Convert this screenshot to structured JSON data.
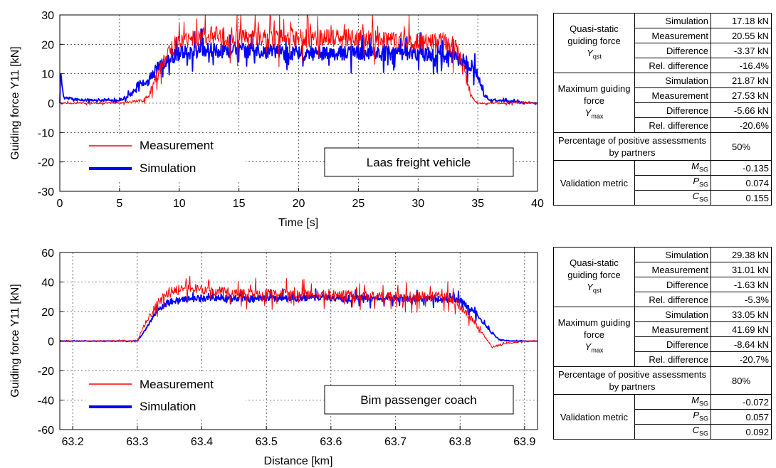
{
  "chart_data": [
    {
      "type": "line",
      "title": "",
      "xlabel": "Time [s]",
      "ylabel": "Guiding force Y11  [kN]",
      "xlim": [
        0,
        40
      ],
      "ylim": [
        -30,
        30
      ],
      "xticks": [
        "0",
        "5",
        "10",
        "15",
        "20",
        "25",
        "30",
        "35",
        "40"
      ],
      "yticks": [
        "30",
        "20",
        "10",
        "0",
        "-10",
        "-20",
        "-30"
      ],
      "grid": true,
      "legend_position": "lower-left",
      "annotation": "Laas freight vehicle",
      "series": [
        {
          "name": "Measurement",
          "color": "#ff0000",
          "x": [
            0,
            5,
            6,
            7,
            7.5,
            8,
            8.5,
            9,
            10,
            11,
            12,
            13,
            15,
            20,
            25,
            30,
            32,
            33,
            33.5,
            34,
            34.5,
            35,
            36,
            38,
            40
          ],
          "y": [
            0,
            0,
            0.5,
            1,
            3,
            8,
            13,
            17,
            21,
            22,
            23,
            23,
            22,
            22,
            22,
            21,
            21,
            20,
            17,
            9,
            2,
            0,
            0,
            0,
            0
          ]
        },
        {
          "name": "Simulation",
          "color": "#0000ff",
          "x": [
            0,
            0.1,
            0.3,
            1,
            2,
            3,
            5,
            6,
            6.5,
            7,
            7.5,
            8,
            9,
            10,
            12,
            15,
            20,
            25,
            30,
            33,
            34,
            35,
            35.5,
            36,
            38,
            40
          ],
          "y": [
            0,
            11,
            2,
            1.5,
            1,
            1,
            1,
            3,
            6,
            7,
            8,
            11,
            15,
            17,
            18,
            18,
            17,
            17,
            17,
            16,
            14,
            10,
            3,
            1,
            0.5,
            0
          ]
        }
      ]
    },
    {
      "type": "line",
      "title": "",
      "xlabel": "Distance [km]",
      "ylabel": "Guiding force Y11  [kN]",
      "xlim": [
        63.18,
        63.92
      ],
      "ylim": [
        -60,
        60
      ],
      "xticks": [
        "63.2",
        "63.3",
        "63.4",
        "63.5",
        "63.6",
        "63.7",
        "63.8",
        "63.9"
      ],
      "yticks": [
        "60",
        "40",
        "20",
        "0",
        "-20",
        "-40",
        "-60"
      ],
      "grid": true,
      "legend_position": "lower-left",
      "annotation": "Bim passenger coach",
      "series": [
        {
          "name": "Measurement",
          "color": "#ff0000",
          "x": [
            63.18,
            63.25,
            63.3,
            63.31,
            63.33,
            63.35,
            63.38,
            63.4,
            63.45,
            63.5,
            63.6,
            63.7,
            63.78,
            63.8,
            63.82,
            63.84,
            63.85,
            63.87,
            63.9,
            63.92
          ],
          "y": [
            0,
            0,
            0,
            10,
            25,
            33,
            36,
            35,
            32,
            32,
            31,
            30,
            30,
            24,
            14,
            2,
            -4,
            -2,
            0,
            0
          ]
        },
        {
          "name": "Simulation",
          "color": "#0000ff",
          "x": [
            63.18,
            63.3,
            63.31,
            63.33,
            63.35,
            63.4,
            63.5,
            63.6,
            63.7,
            63.8,
            63.82,
            63.84,
            63.86,
            63.88,
            63.92
          ],
          "y": [
            0,
            0,
            6,
            20,
            27,
            29,
            29,
            29,
            29,
            28,
            20,
            10,
            1,
            0,
            0
          ]
        }
      ]
    }
  ],
  "tables": [
    {
      "qs_group": "Quasi-static guiding force",
      "qs_symbol": {
        "main": "Y",
        "sub": "qst"
      },
      "qs_rows": [
        {
          "label": "Simulation",
          "value": "17.18 kN"
        },
        {
          "label": "Measurement",
          "value": "20.55 kN"
        },
        {
          "label": "Difference",
          "value": "-3.37 kN"
        },
        {
          "label": "Rel. difference",
          "value": "-16.4%"
        }
      ],
      "max_group": "Maximum guiding force",
      "max_symbol": {
        "main": "Y",
        "sub": "max"
      },
      "max_rows": [
        {
          "label": "Simulation",
          "value": "21.87 kN"
        },
        {
          "label": "Measurement",
          "value": "27.53 kN"
        },
        {
          "label": "Difference",
          "value": "-5.66 kN"
        },
        {
          "label": "Rel. difference",
          "value": "-20.6%"
        }
      ],
      "percent_label": "Percentage of positive assessments by partners",
      "percent_value": "50%",
      "metric_group": "Validation metric",
      "metric_rows": [
        {
          "sym": "M",
          "sub": "SG",
          "value": "-0.135"
        },
        {
          "sym": "P",
          "sub": "SG",
          "value": "0.074"
        },
        {
          "sym": "C",
          "sub": "SG",
          "value": "0.155"
        }
      ]
    },
    {
      "qs_group": "Quasi-static guiding force",
      "qs_symbol": {
        "main": "Y",
        "sub": "qst"
      },
      "qs_rows": [
        {
          "label": "Simulation",
          "value": "29.38 kN"
        },
        {
          "label": "Measurement",
          "value": "31.01 kN"
        },
        {
          "label": "Difference",
          "value": "-1.63 kN"
        },
        {
          "label": "Rel. difference",
          "value": "-5.3%"
        }
      ],
      "max_group": "Maximum guiding force",
      "max_symbol": {
        "main": "Y",
        "sub": "max"
      },
      "max_rows": [
        {
          "label": "Simulation",
          "value": "33.05 kN"
        },
        {
          "label": "Measurement",
          "value": "41.69 kN"
        },
        {
          "label": "Difference",
          "value": "-8.64 kN"
        },
        {
          "label": "Rel. difference",
          "value": "-20.7%"
        }
      ],
      "percent_label": "Percentage of positive assessments by partners",
      "percent_value": "80%",
      "metric_group": "Validation metric",
      "metric_rows": [
        {
          "sym": "M",
          "sub": "SG",
          "value": "-0.072"
        },
        {
          "sym": "P",
          "sub": "SG",
          "value": "0.057"
        },
        {
          "sym": "C",
          "sub": "SG",
          "value": "0.092"
        }
      ]
    }
  ]
}
